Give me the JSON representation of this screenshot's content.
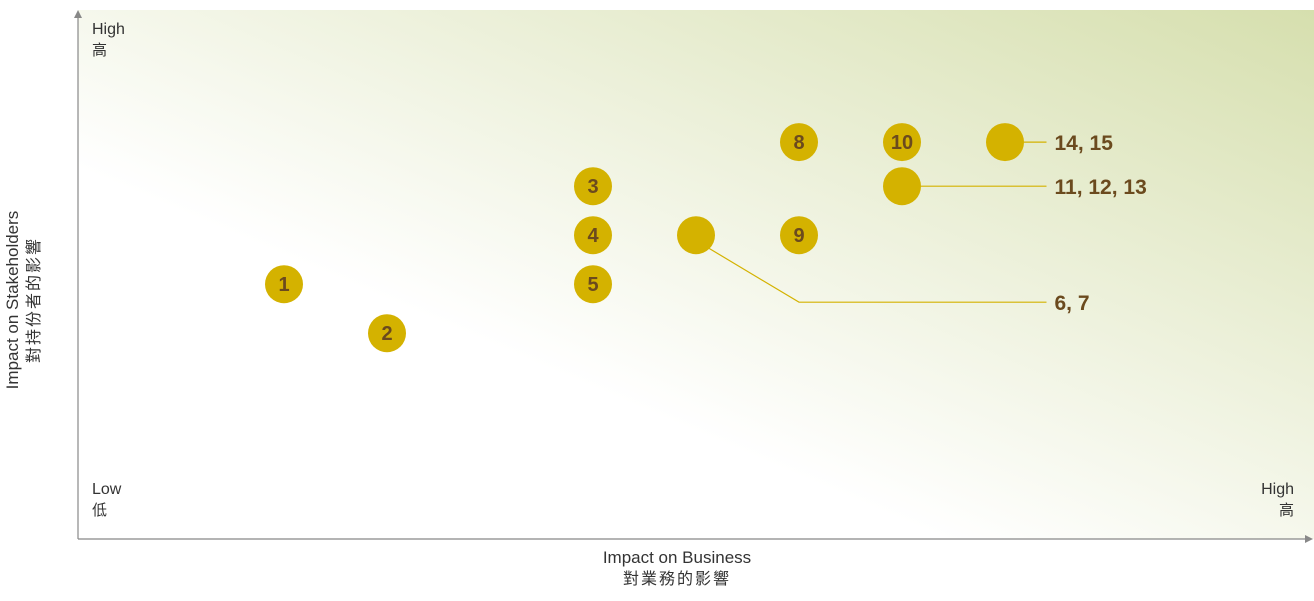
{
  "chart_data": {
    "type": "scatter",
    "title": "",
    "xlabel": "Impact on Business",
    "xlabel_cn": "對業務的影響",
    "ylabel": "Impact on Stakeholders",
    "ylabel_cn": "對持份者的影響",
    "x_low": "Low",
    "x_low_cn": "低",
    "x_high": "High",
    "x_high_cn": "高",
    "y_high": "High",
    "y_high_cn": "高",
    "xlim": [
      0,
      12
    ],
    "ylim": [
      0,
      10
    ],
    "grid": false,
    "colors": {
      "marker": "#d4b200",
      "label": "#6b4a1e",
      "leader": "#d4b200",
      "axis": "#888888",
      "gradient_start": "#ffffff",
      "gradient_end": "#d6dfae"
    },
    "points": [
      {
        "label": "1",
        "x": 2.0,
        "y": 5.2
      },
      {
        "label": "2",
        "x": 3.0,
        "y": 4.2
      },
      {
        "label": "3",
        "x": 5.0,
        "y": 7.2
      },
      {
        "label": "4",
        "x": 5.0,
        "y": 6.2
      },
      {
        "label": "5",
        "x": 5.0,
        "y": 5.2
      },
      {
        "label": "8",
        "x": 7.0,
        "y": 8.1
      },
      {
        "label": "9",
        "x": 7.0,
        "y": 6.2
      },
      {
        "label": "10",
        "x": 8.0,
        "y": 8.1
      }
    ],
    "grouped_points": [
      {
        "label": "6, 7",
        "x": 6.0,
        "y": 6.2
      },
      {
        "label": "11, 12, 13",
        "x": 8.0,
        "y": 7.2
      },
      {
        "label": "14, 15",
        "x": 9.0,
        "y": 8.1
      }
    ]
  }
}
